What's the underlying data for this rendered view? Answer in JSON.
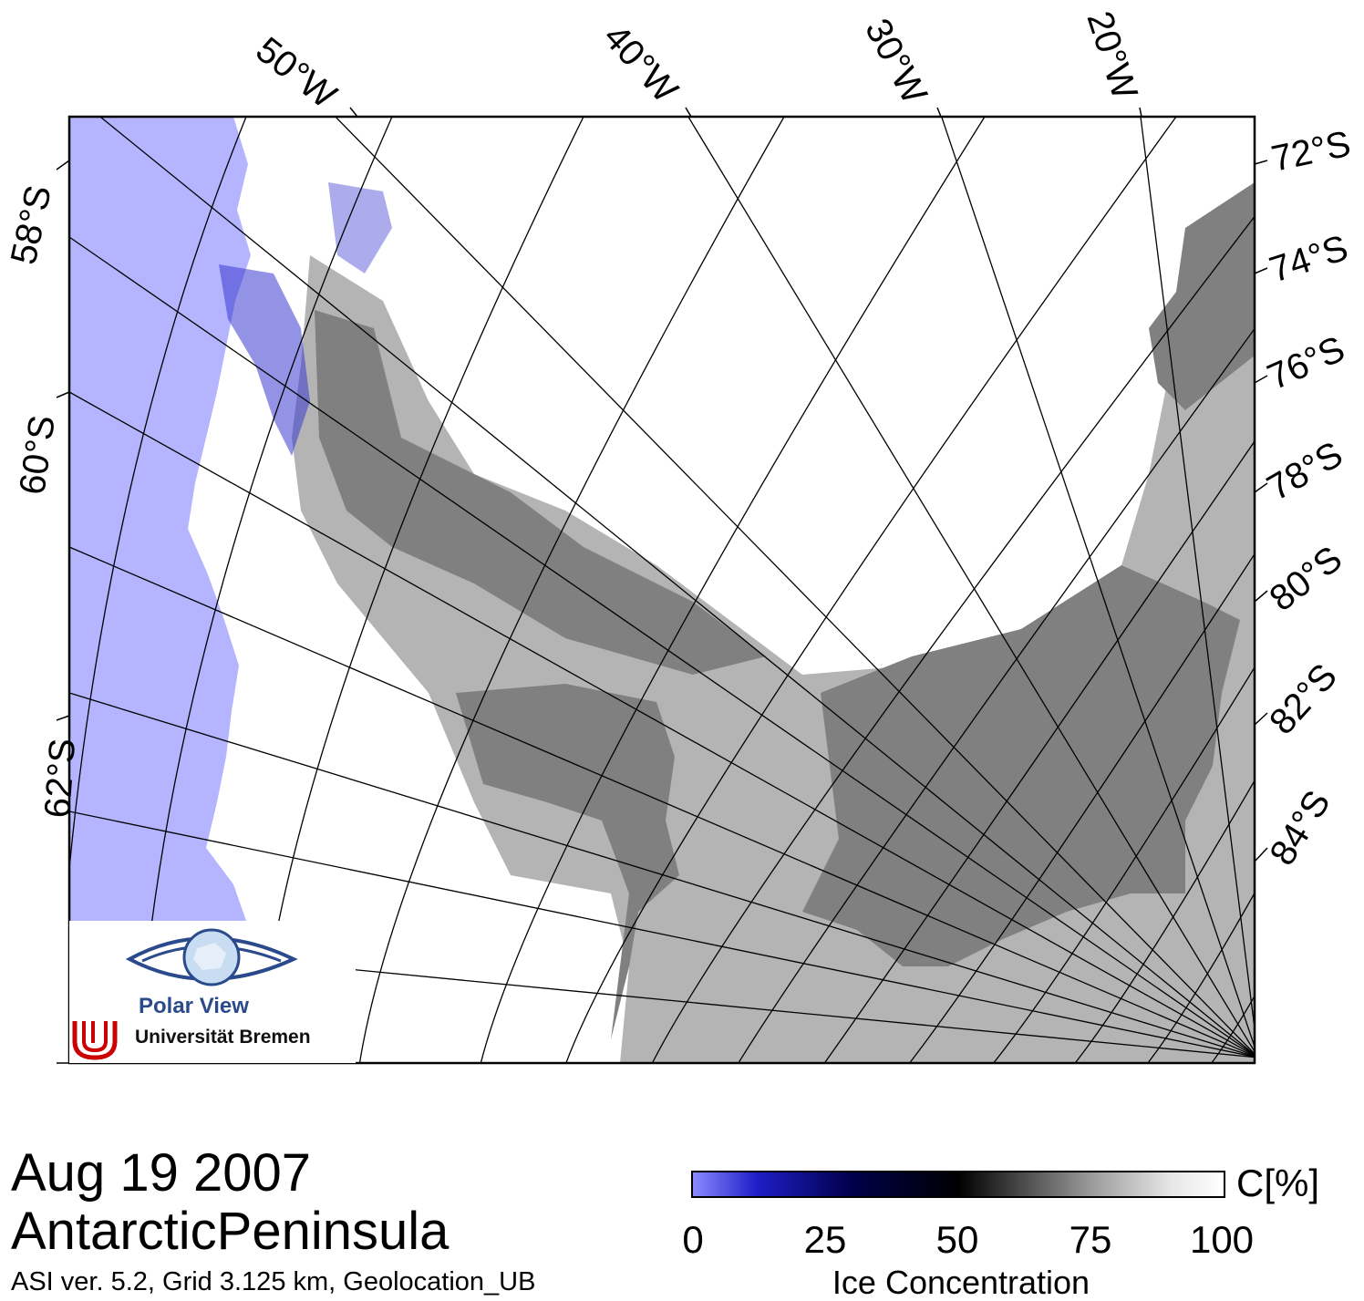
{
  "title": {
    "date": "Aug 19 2007",
    "region": "AntarcticPeninsula",
    "info": "ASI ver. 5.2,  Grid 3.125 km, Geolocation_UB"
  },
  "graticule": {
    "longitude_labels": [
      "50°W",
      "40°W",
      "30°W",
      "20°W"
    ],
    "latitude_labels_left": [
      "58°S",
      "60°S",
      "62°S"
    ],
    "latitude_labels_right": [
      "72°S",
      "74°S",
      "76°S",
      "78°S",
      "80°S",
      "82°S",
      "84°S"
    ]
  },
  "colorbar": {
    "unit": "C[%]",
    "title": "Ice Concentration",
    "ticks": [
      "0",
      "25",
      "50",
      "75",
      "100"
    ],
    "colors": [
      "#8a8aff",
      "#00004a",
      "#000000",
      "#a0a0a0",
      "#ffffff"
    ]
  },
  "map_colors": {
    "open_ocean": "#b4b4ff",
    "land": "#b4b4b4",
    "ice_shelf": "#808080",
    "sea_ice": "#ffffff"
  },
  "logo": {
    "name": "Polar View",
    "institution": "Universität Bremen"
  }
}
